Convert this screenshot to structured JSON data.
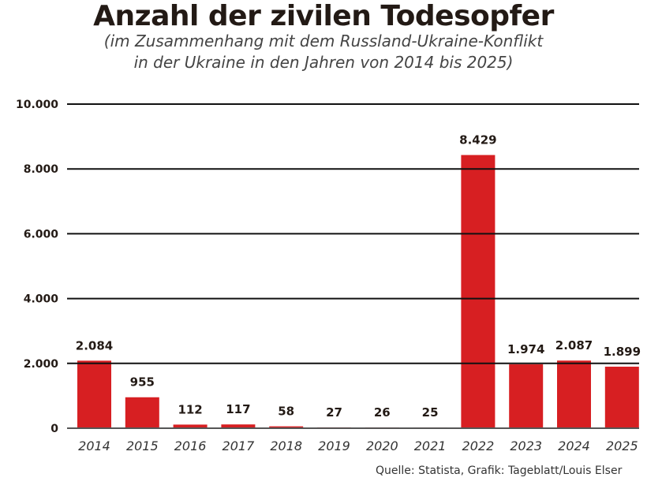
{
  "chart_data": {
    "type": "bar",
    "title": "Anzahl der zivilen Todesopfer",
    "subtitle": [
      "(im Zusammenhang mit dem Russland-Ukraine-Konflikt",
      "in der Ukraine in den Jahren von 2014 bis 2025)"
    ],
    "categories": [
      "2014",
      "2015",
      "2016",
      "2017",
      "2018",
      "2019",
      "2020",
      "2021",
      "2022",
      "2023",
      "2024",
      "2025"
    ],
    "values": [
      2084,
      955,
      112,
      117,
      58,
      27,
      26,
      25,
      8429,
      1974,
      2087,
      1899
    ],
    "value_labels": [
      "2.084",
      "955",
      "112",
      "117",
      "58",
      "27",
      "26",
      "25",
      "8.429",
      "1.974",
      "2.087",
      "1.899"
    ],
    "yticks": [
      0,
      2000,
      4000,
      6000,
      8000,
      10000
    ],
    "ytick_labels": [
      "0",
      "2.000",
      "4.000",
      "6.000",
      "8.000",
      "10.000"
    ],
    "ylim": [
      0,
      10000
    ],
    "grid": true,
    "bar_color": "#d71f22",
    "source": "Quelle: Statista, Grafik: Tageblatt/Louis Elser"
  }
}
